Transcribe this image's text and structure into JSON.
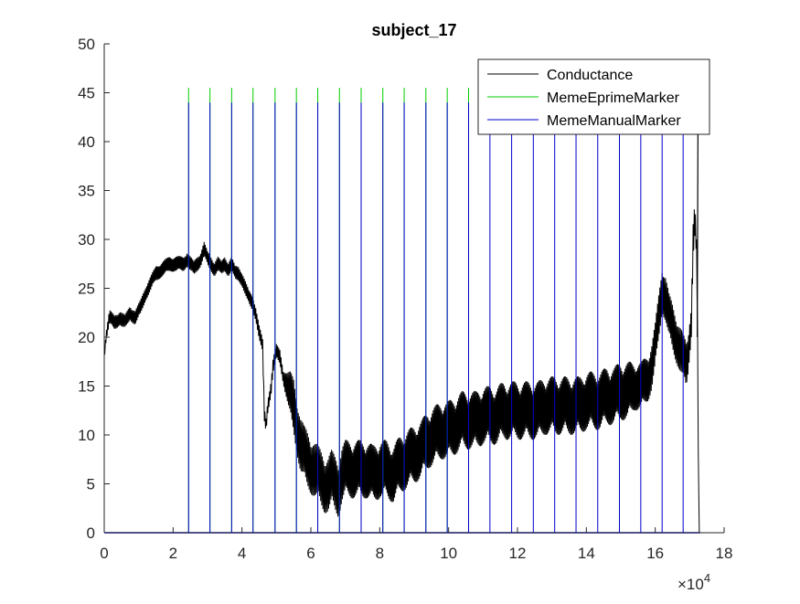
{
  "chart_data": {
    "type": "line",
    "title": "subject_17",
    "xlabel": "",
    "ylabel": "",
    "x_exponent_label": "×10",
    "x_exponent_power": "4",
    "xlim": [
      0,
      180000
    ],
    "ylim": [
      0,
      50
    ],
    "x_ticks": [
      0,
      20000,
      40000,
      60000,
      80000,
      100000,
      120000,
      140000,
      160000,
      180000
    ],
    "x_tick_labels": [
      "0",
      "2",
      "4",
      "6",
      "8",
      "10",
      "12",
      "14",
      "16",
      "18"
    ],
    "y_ticks": [
      0,
      5,
      10,
      15,
      20,
      25,
      30,
      35,
      40,
      45,
      50
    ],
    "y_tick_labels": [
      "0",
      "5",
      "10",
      "15",
      "20",
      "25",
      "30",
      "35",
      "40",
      "45",
      "50"
    ],
    "grid": false,
    "legend_position": "top-right",
    "series": [
      {
        "name": "Conductance",
        "color": "#000000",
        "x": [
          0,
          500,
          1500,
          3000,
          4500,
          6000,
          7500,
          9000,
          10500,
          12000,
          13500,
          15000,
          17000,
          19000,
          21000,
          23000,
          24000,
          25000,
          26000,
          27000,
          28000,
          29000,
          30000,
          31000,
          32000,
          33000,
          34000,
          35000,
          36000,
          37000,
          38000,
          39000,
          40000,
          41000,
          42000,
          43000,
          44000,
          45000,
          46000,
          46500,
          47000,
          47500,
          48000,
          48500,
          49000,
          50000,
          51000,
          52000,
          53000,
          54000,
          55000,
          56000,
          57000,
          58000,
          59000,
          60000,
          61000,
          62000,
          63000,
          64000,
          65000,
          66000,
          67000,
          68000,
          69000,
          70000,
          72000,
          74000,
          76000,
          78000,
          80000,
          82000,
          84000,
          86000,
          88000,
          90000,
          92000,
          94000,
          96000,
          98000,
          100000,
          102000,
          104000,
          106000,
          108000,
          110000,
          112000,
          114000,
          116000,
          118000,
          120000,
          122000,
          124000,
          126000,
          128000,
          130000,
          132000,
          134000,
          136000,
          138000,
          140000,
          142000,
          144000,
          146000,
          148000,
          150000,
          152000,
          154000,
          156000,
          158000,
          159000,
          160000,
          161000,
          162000,
          163000,
          164000,
          165000,
          166000,
          167000,
          168000,
          169000,
          169500,
          170000,
          170500,
          171000,
          171500,
          172000,
          172300,
          172500,
          172800
        ],
        "y": [
          18,
          20,
          22,
          21.5,
          22,
          21.5,
          22.5,
          22,
          23,
          24.5,
          25.5,
          26.5,
          27,
          27.5,
          27.5,
          27.5,
          28,
          27.5,
          27,
          27.5,
          28,
          29,
          28,
          27.5,
          27,
          27.5,
          27,
          27.5,
          27,
          27.5,
          26.5,
          26.5,
          26,
          25,
          24,
          23.5,
          22.5,
          20.5,
          19,
          12,
          11,
          13,
          14,
          15,
          17,
          18.5,
          18,
          16,
          15,
          14,
          13,
          11,
          9,
          8,
          7.5,
          7,
          6.5,
          6,
          5.5,
          5,
          5,
          5.5,
          5,
          4.5,
          6,
          6.5,
          6.5,
          6.5,
          6.5,
          6,
          6.5,
          6.5,
          6,
          7,
          7.5,
          8,
          8.5,
          9.5,
          10,
          10.5,
          10.5,
          11,
          11.5,
          11.5,
          11.5,
          12,
          12,
          12,
          12.5,
          12.5,
          12.5,
          12.5,
          12.5,
          12.5,
          13,
          13,
          13,
          13,
          13,
          13,
          13.5,
          13.5,
          13.5,
          14,
          14,
          14.5,
          14.5,
          15,
          15,
          16,
          17,
          19,
          22,
          25,
          24,
          22,
          21,
          20,
          19,
          18,
          17,
          18,
          20,
          22,
          30,
          32,
          29,
          20,
          8,
          0
        ],
        "band": [
          0.3,
          0.5,
          0.8,
          0.8,
          0.8,
          0.8,
          0.8,
          0.8,
          0.8,
          0.8,
          0.8,
          0.8,
          0.8,
          0.8,
          0.8,
          0.8,
          0.8,
          0.8,
          0.8,
          0.8,
          0.8,
          0.8,
          0.8,
          0.8,
          0.8,
          0.8,
          0.8,
          0.8,
          0.8,
          0.8,
          0.8,
          0.8,
          0.8,
          0.8,
          0.8,
          0.8,
          0.8,
          0.8,
          0.8,
          0.8,
          0.8,
          0.8,
          0.8,
          0.8,
          0.8,
          0.8,
          0.8,
          0.8,
          1.5,
          2.5,
          3,
          3,
          3,
          3,
          3,
          3,
          3,
          3,
          3,
          3,
          3,
          3,
          3,
          3,
          3,
          3,
          3,
          3,
          3,
          3,
          3,
          3,
          3,
          3,
          3,
          3,
          3,
          3,
          3,
          3,
          3,
          3,
          3,
          3,
          3,
          3,
          3,
          3,
          3,
          3,
          3,
          3,
          3,
          3,
          3,
          3,
          3,
          3,
          3,
          3,
          3,
          3,
          3,
          3,
          3,
          3,
          3,
          2.5,
          2.5,
          2.5,
          2.5,
          2.5,
          2.5,
          2.5,
          2.5,
          2.5,
          2.5,
          2.5,
          2.5,
          2.5,
          2.5,
          2,
          2,
          2,
          2,
          2,
          1,
          0.5,
          0.3,
          0
        ]
      },
      {
        "name": "MemeEprimeMarker",
        "color": "#00cc00",
        "x": [
          24500,
          30700,
          37000,
          43200,
          49600,
          55800,
          62000,
          68300,
          74600,
          80900,
          87100,
          93400,
          99600,
          105800
        ],
        "y_high": 45.5
      },
      {
        "name": "MemeManualMarker",
        "color": "#0000cc",
        "x": [
          24500,
          30700,
          37000,
          43200,
          49600,
          55800,
          62000,
          68300,
          74600,
          80900,
          87100,
          93400,
          99600,
          105800,
          112000,
          118300,
          124600,
          130800,
          137000,
          143300,
          149600,
          155800,
          162000,
          168100
        ],
        "y_high": 44
      }
    ]
  }
}
